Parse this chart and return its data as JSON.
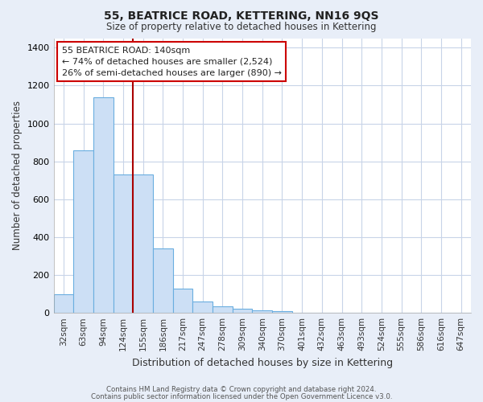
{
  "title": "55, BEATRICE ROAD, KETTERING, NN16 9QS",
  "subtitle": "Size of property relative to detached houses in Kettering",
  "xlabel": "Distribution of detached houses by size in Kettering",
  "ylabel": "Number of detached properties",
  "footer1": "Contains HM Land Registry data © Crown copyright and database right 2024.",
  "footer2": "Contains public sector information licensed under the Open Government Licence v3.0.",
  "categories": [
    "32sqm",
    "63sqm",
    "94sqm",
    "124sqm",
    "155sqm",
    "186sqm",
    "217sqm",
    "247sqm",
    "278sqm",
    "309sqm",
    "340sqm",
    "370sqm",
    "401sqm",
    "432sqm",
    "463sqm",
    "493sqm",
    "524sqm",
    "555sqm",
    "586sqm",
    "616sqm",
    "647sqm"
  ],
  "values": [
    100,
    860,
    1140,
    730,
    730,
    340,
    130,
    60,
    33,
    20,
    15,
    10,
    0,
    0,
    0,
    0,
    0,
    0,
    0,
    0,
    0
  ],
  "bar_color": "#ccdff5",
  "bar_edge_color": "#6aaee0",
  "grid_color": "#c8d4e8",
  "background_color": "#e8eef8",
  "plot_bg_color": "#ffffff",
  "annotation_text": "55 BEATRICE ROAD: 140sqm\n← 74% of detached houses are smaller (2,524)\n26% of semi-detached houses are larger (890) →",
  "annotation_box_color": "#cc0000",
  "red_line_color": "#aa0000",
  "ylim": [
    0,
    1450
  ],
  "yticks": [
    0,
    200,
    400,
    600,
    800,
    1000,
    1200,
    1400
  ]
}
